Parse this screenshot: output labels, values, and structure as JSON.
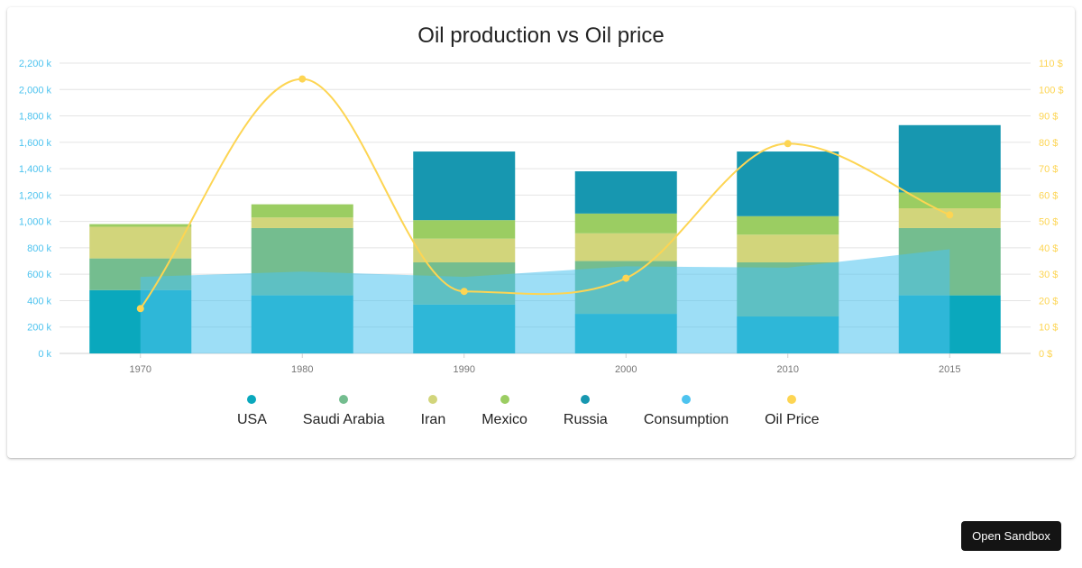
{
  "chart_data": {
    "type": "bar",
    "title": "Oil production vs Oil price",
    "categories": [
      "1970",
      "1980",
      "1990",
      "2000",
      "2010",
      "2015"
    ],
    "stacked": true,
    "series": [
      {
        "name": "USA",
        "type": "bar",
        "color": "#0aa8bd",
        "values": [
          480,
          440,
          370,
          300,
          280,
          440
        ]
      },
      {
        "name": "Saudi Arabia",
        "type": "bar",
        "color": "#74bd8f",
        "values": [
          240,
          510,
          320,
          400,
          410,
          510
        ]
      },
      {
        "name": "Iran",
        "type": "bar",
        "color": "#d2d57b",
        "values": [
          240,
          80,
          180,
          210,
          210,
          150
        ]
      },
      {
        "name": "Mexico",
        "type": "bar",
        "color": "#9bcd62",
        "values": [
          20,
          100,
          140,
          150,
          140,
          120
        ]
      },
      {
        "name": "Russia",
        "type": "bar",
        "color": "#1797b0",
        "values": [
          0,
          0,
          520,
          320,
          490,
          510
        ]
      },
      {
        "name": "Consumption",
        "type": "area",
        "color": "#4dc3ef",
        "values": [
          580,
          620,
          580,
          660,
          650,
          790
        ]
      },
      {
        "name": "Oil Price",
        "type": "spline",
        "axis": "right",
        "color": "#fdd553",
        "values": [
          17,
          104,
          23.5,
          28.5,
          79.5,
          52.5
        ]
      }
    ],
    "y_left": {
      "min": 0,
      "max": 2200,
      "step": 200,
      "tick_labels": [
        "0 k",
        "200 k",
        "400 k",
        "600 k",
        "800 k",
        "1,000 k",
        "1,200 k",
        "1,400 k",
        "1,600 k",
        "1,800 k",
        "2,000 k",
        "2,200 k"
      ]
    },
    "y_right": {
      "min": 0,
      "max": 110,
      "step": 10,
      "tick_labels": [
        "0 $",
        "10 $",
        "20 $",
        "30 $",
        "40 $",
        "50 $",
        "60 $",
        "70 $",
        "80 $",
        "90 $",
        "100 $",
        "110 $"
      ]
    },
    "grid": true,
    "legend_position": "bottom"
  },
  "axis_colors": {
    "left": "#4dc3ef",
    "right": "#fdd553",
    "category": "#767676"
  },
  "sandbox_button_label": "Open Sandbox"
}
